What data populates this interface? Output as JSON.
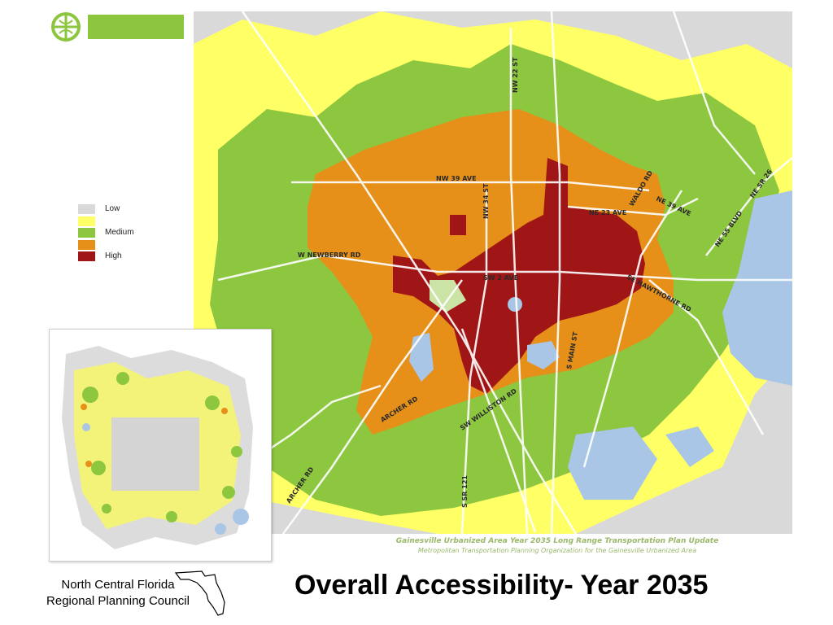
{
  "slide": {
    "title": "Overall Accessibility- Year 2035",
    "organization": [
      "North Central Florida",
      "Regional Planning Council"
    ]
  },
  "legend": {
    "items": [
      {
        "label": "Low",
        "color": "#d9d9d9"
      },
      {
        "label": "",
        "color": "#ffff66"
      },
      {
        "label": "Medium",
        "color": "#8dc63f"
      },
      {
        "label": "",
        "color": "#e6901a"
      },
      {
        "label": "High",
        "color": "#a01616"
      }
    ]
  },
  "map": {
    "caption_line1": "Gainesville Urbanized Area Year 2035 Long Range Transportation Plan Update",
    "caption_line2": "Metropolitan Transportation Planning Organization for the Gainesville Urbanized Area",
    "road_labels": {
      "nw22": "NW 22 ST",
      "nw39": "NW 39 AVE",
      "waldo": "WALDO RD",
      "ne39": "NE 39 AVE",
      "ne55": "NE 55 BLVD",
      "nesr26": "NE SR 26",
      "ne23": "NE 23 AVE",
      "newberry": "W NEWBERRY RD",
      "nw34": "NW 34 ST",
      "sw2": "SW 2 AVE",
      "hawthorne": "SE HAWTHORNE RD",
      "smain": "S MAIN ST",
      "archer_rd": "ARCHER RD",
      "archer_rd_sw": "ARCHER RD",
      "williston": "SW WILLISTON RD",
      "ssr121": "S SR 121"
    }
  },
  "colors": {
    "low": "#d9d9d9",
    "lowmed": "#ffff66",
    "medium": "#8dc63f",
    "medhigh": "#e6901a",
    "high": "#a01616",
    "water": "#a9c6e6",
    "logo_green": "#8cc63f"
  }
}
